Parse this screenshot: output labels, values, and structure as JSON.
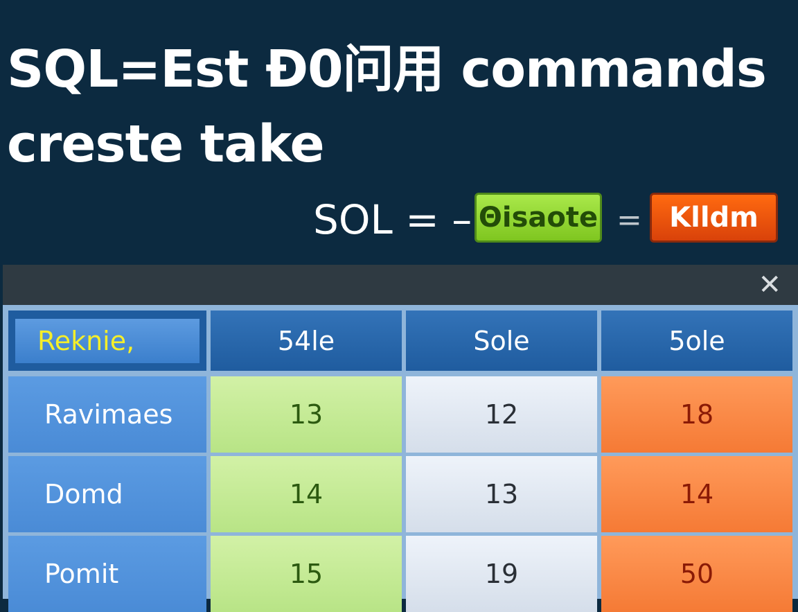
{
  "title": {
    "line1": "SQL=Est Ð0问用 commands",
    "line2": "creste take"
  },
  "equation": {
    "label": "SOL = –",
    "separator": "=",
    "green_button": "Θisaote",
    "red_button": "Klldm"
  },
  "colors": {
    "background": "#0c2a40",
    "green": "#8fd42e",
    "red": "#e8500c",
    "header_blue": "#2566a8",
    "label_yellow": "#f5ef2a"
  },
  "panel": {
    "close_icon": "close-icon",
    "close_label": "✕",
    "headers": [
      "Reknie,",
      "54le",
      "Sole",
      "5ole"
    ],
    "rows": [
      {
        "label": "Ravimaes",
        "values": [
          "13",
          "12",
          "18"
        ]
      },
      {
        "label": "Domd",
        "values": [
          "14",
          "13",
          "14"
        ]
      },
      {
        "label": "Pomit",
        "values": [
          "15",
          "19",
          "50"
        ]
      }
    ]
  }
}
